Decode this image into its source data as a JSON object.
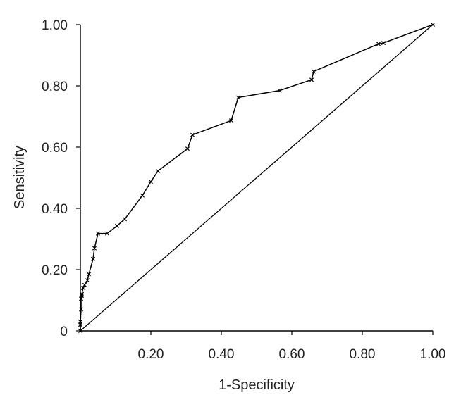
{
  "chart_data": {
    "type": "line",
    "title": "",
    "xlabel": "1-Specificity",
    "ylabel": "Sensitivity",
    "xlim": [
      0,
      1
    ],
    "ylim": [
      0,
      1
    ],
    "grid": false,
    "legend": "none",
    "xticks": [
      {
        "value": 0.2,
        "label": "0.20"
      },
      {
        "value": 0.4,
        "label": "0.40"
      },
      {
        "value": 0.6,
        "label": "0.60"
      },
      {
        "value": 0.8,
        "label": "0.80"
      },
      {
        "value": 1.0,
        "label": "1.00"
      }
    ],
    "yticks": [
      {
        "value": 0,
        "label": "0"
      },
      {
        "value": 0.2,
        "label": "0.20"
      },
      {
        "value": 0.4,
        "label": "0.40"
      },
      {
        "value": 0.6,
        "label": "0.60"
      },
      {
        "value": 0.8,
        "label": "0.80"
      },
      {
        "value": 1.0,
        "label": "1.00"
      }
    ],
    "series": [
      {
        "marker": "x",
        "color": "#000000",
        "x": [
          0.0,
          0.0,
          0.0,
          0.002,
          0.002,
          0.004,
          0.004,
          0.008,
          0.012,
          0.02,
          0.024,
          0.036,
          0.04,
          0.05,
          0.076,
          0.104,
          0.126,
          0.176,
          0.2,
          0.22,
          0.304,
          0.318,
          0.428,
          0.448,
          0.566,
          0.656,
          0.662,
          0.846,
          0.86,
          1.0
        ],
        "y": [
          0.0,
          0.02,
          0.03,
          0.07,
          0.105,
          0.115,
          0.12,
          0.14,
          0.15,
          0.165,
          0.185,
          0.235,
          0.27,
          0.318,
          0.318,
          0.343,
          0.365,
          0.442,
          0.487,
          0.522,
          0.595,
          0.64,
          0.687,
          0.762,
          0.785,
          0.82,
          0.847,
          0.937,
          0.94,
          1.0
        ]
      }
    ],
    "reference_line": {
      "x": [
        0,
        1
      ],
      "y": [
        0,
        1
      ],
      "color": "#000000"
    }
  }
}
